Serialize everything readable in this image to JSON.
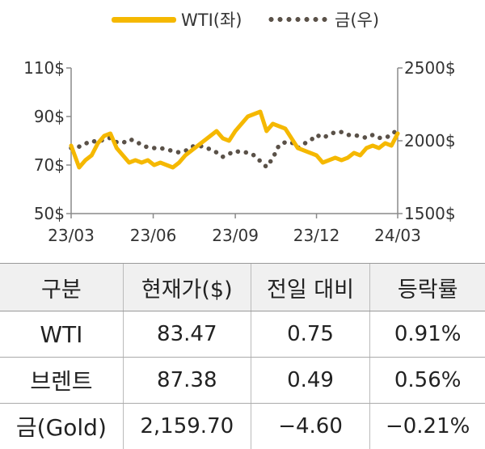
{
  "chart_data": {
    "type": "line",
    "x_ticks": [
      "23/03",
      "23/06",
      "23/09",
      "23/12",
      "24/03"
    ],
    "y_left_ticks": [
      "110$",
      "90$",
      "70$",
      "50$"
    ],
    "y_right_ticks": [
      "2500$",
      "2000$",
      "1500$"
    ],
    "y_left_range": [
      50,
      110
    ],
    "y_right_range": [
      1500,
      2500
    ],
    "series": [
      {
        "name": "WTI(좌)",
        "axis": "left",
        "color": "#f5b800",
        "style": "solid",
        "x": [
          "2023-03-01",
          "2023-03-10",
          "2023-03-17",
          "2023-03-24",
          "2023-03-31",
          "2023-04-07",
          "2023-04-14",
          "2023-04-21",
          "2023-04-28",
          "2023-05-05",
          "2023-05-12",
          "2023-05-19",
          "2023-05-26",
          "2023-06-02",
          "2023-06-09",
          "2023-06-16",
          "2023-06-23",
          "2023-06-30",
          "2023-07-07",
          "2023-07-14",
          "2023-07-21",
          "2023-07-28",
          "2023-08-04",
          "2023-08-11",
          "2023-08-18",
          "2023-08-25",
          "2023-09-01",
          "2023-09-08",
          "2023-09-15",
          "2023-09-22",
          "2023-09-29",
          "2023-10-06",
          "2023-10-13",
          "2023-10-20",
          "2023-10-27",
          "2023-11-03",
          "2023-11-10",
          "2023-11-17",
          "2023-11-24",
          "2023-12-01",
          "2023-12-08",
          "2023-12-15",
          "2023-12-22",
          "2023-12-29",
          "2024-01-05",
          "2024-01-12",
          "2024-01-19",
          "2024-01-26",
          "2024-02-02",
          "2024-02-09",
          "2024-02-16",
          "2024-02-23",
          "2024-03-01"
        ],
        "values": [
          78,
          69,
          72,
          74,
          79,
          82,
          83,
          77,
          74,
          71,
          72,
          71,
          72,
          70,
          71,
          70,
          69,
          71,
          74,
          76,
          78,
          80,
          82,
          84,
          81,
          80,
          84,
          87,
          90,
          91,
          92,
          84,
          87,
          86,
          85,
          81,
          77,
          76,
          75,
          74,
          71,
          72,
          73,
          72,
          73,
          75,
          74,
          77,
          78,
          77,
          79,
          78,
          83
        ]
      },
      {
        "name": "금(우)",
        "axis": "right",
        "color": "#5a5148",
        "style": "dotted",
        "x": [
          "2023-03-01",
          "2023-03-10",
          "2023-03-17",
          "2023-03-24",
          "2023-03-31",
          "2023-04-07",
          "2023-04-14",
          "2023-04-21",
          "2023-04-28",
          "2023-05-05",
          "2023-05-12",
          "2023-05-19",
          "2023-05-26",
          "2023-06-02",
          "2023-06-09",
          "2023-06-16",
          "2023-06-23",
          "2023-06-30",
          "2023-07-07",
          "2023-07-14",
          "2023-07-21",
          "2023-07-28",
          "2023-08-04",
          "2023-08-11",
          "2023-08-18",
          "2023-08-25",
          "2023-09-01",
          "2023-09-08",
          "2023-09-15",
          "2023-09-22",
          "2023-09-29",
          "2023-10-06",
          "2023-10-13",
          "2023-10-20",
          "2023-10-27",
          "2023-11-03",
          "2023-11-10",
          "2023-11-17",
          "2023-11-24",
          "2023-12-01",
          "2023-12-08",
          "2023-12-15",
          "2023-12-22",
          "2023-12-29",
          "2024-01-05",
          "2024-01-12",
          "2024-01-19",
          "2024-01-26",
          "2024-02-02",
          "2024-02-09",
          "2024-02-16",
          "2024-02-23",
          "2024-03-01"
        ],
        "values": [
          1950,
          1960,
          1980,
          2000,
          1990,
          2010,
          2020,
          1990,
          1985,
          2010,
          2000,
          1970,
          1955,
          1950,
          1950,
          1940,
          1930,
          1920,
          1930,
          1960,
          1965,
          1960,
          1940,
          1920,
          1890,
          1910,
          1930,
          1920,
          1920,
          1900,
          1860,
          1820,
          1880,
          1970,
          1990,
          1990,
          1950,
          1980,
          2000,
          2040,
          2020,
          2040,
          2060,
          2060,
          2040,
          2040,
          2030,
          2020,
          2040,
          2020,
          2020,
          2040,
          2080
        ]
      }
    ]
  },
  "table": {
    "headers": [
      "구분",
      "현재가($)",
      "전일 대비",
      "등락률"
    ],
    "rows": [
      [
        "WTI",
        "83.47",
        "0.75",
        "0.91%"
      ],
      [
        "브렌트",
        "87.38",
        "0.49",
        "0.56%"
      ],
      [
        "금(Gold)",
        "2,159.70",
        "−4.60",
        "−0.21%"
      ]
    ]
  }
}
